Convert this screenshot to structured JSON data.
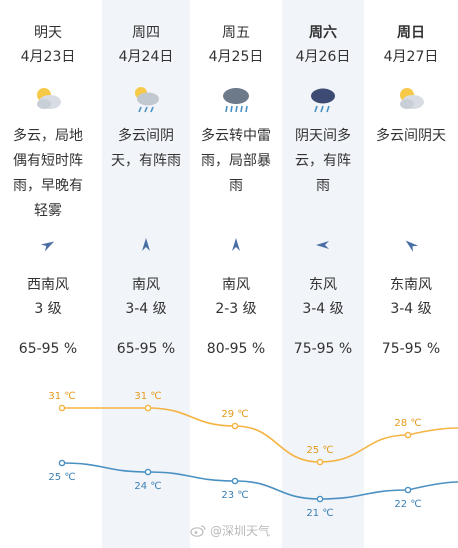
{
  "days": [
    {
      "name": "明天",
      "bold": false,
      "date": "4月23日",
      "icon": "partly-cloudy-sun-icon",
      "desc": "多云，局地偶有短时阵雨，早晚有轻雾",
      "wind_icon": "wind-arrow-northeast-icon",
      "wind_dir": "西南风",
      "wind_level": "3 级",
      "humidity": "65-95 %"
    },
    {
      "name": "周四",
      "bold": false,
      "date": "4月24日",
      "icon": "cloud-sun-light-rain-icon",
      "desc": "多云间阴天，有阵雨",
      "wind_icon": "wind-arrow-north-icon",
      "wind_dir": "南风",
      "wind_level": "3-4 级",
      "humidity": "65-95 %"
    },
    {
      "name": "周五",
      "bold": false,
      "date": "4月25日",
      "icon": "thunderstorm-heavy-rain-icon",
      "desc": "多云转中雷雨，局部暴雨",
      "wind_icon": "wind-arrow-north-icon",
      "wind_dir": "南风",
      "wind_level": "2-3 级",
      "humidity": "80-95 %"
    },
    {
      "name": "周六",
      "bold": true,
      "date": "4月26日",
      "icon": "dark-cloud-rain-icon",
      "desc": "阴天间多云，有阵雨",
      "wind_icon": "wind-arrow-west-icon",
      "wind_dir": "东风",
      "wind_level": "3-4 级",
      "humidity": "75-95 %"
    },
    {
      "name": "周日",
      "bold": true,
      "date": "4月27日",
      "icon": "partly-cloudy-sun-icon",
      "desc": "多云间阴天",
      "wind_icon": "wind-arrow-northwest-icon",
      "wind_dir": "东南风",
      "wind_level": "3-4 级",
      "humidity": "75-95 %"
    }
  ],
  "chart_data": {
    "type": "line",
    "categories": [
      "4月23日",
      "4月24日",
      "4月25日",
      "4月26日",
      "4月27日"
    ],
    "series": [
      {
        "values": [
          31,
          31,
          29,
          25,
          28
        ],
        "color": "#f5b342"
      },
      {
        "values": [
          25,
          24,
          23,
          21,
          22
        ],
        "color": "#4a90c2"
      }
    ],
    "unit": "℃",
    "grid": false
  },
  "watermark": {
    "text": "@深圳天气"
  }
}
